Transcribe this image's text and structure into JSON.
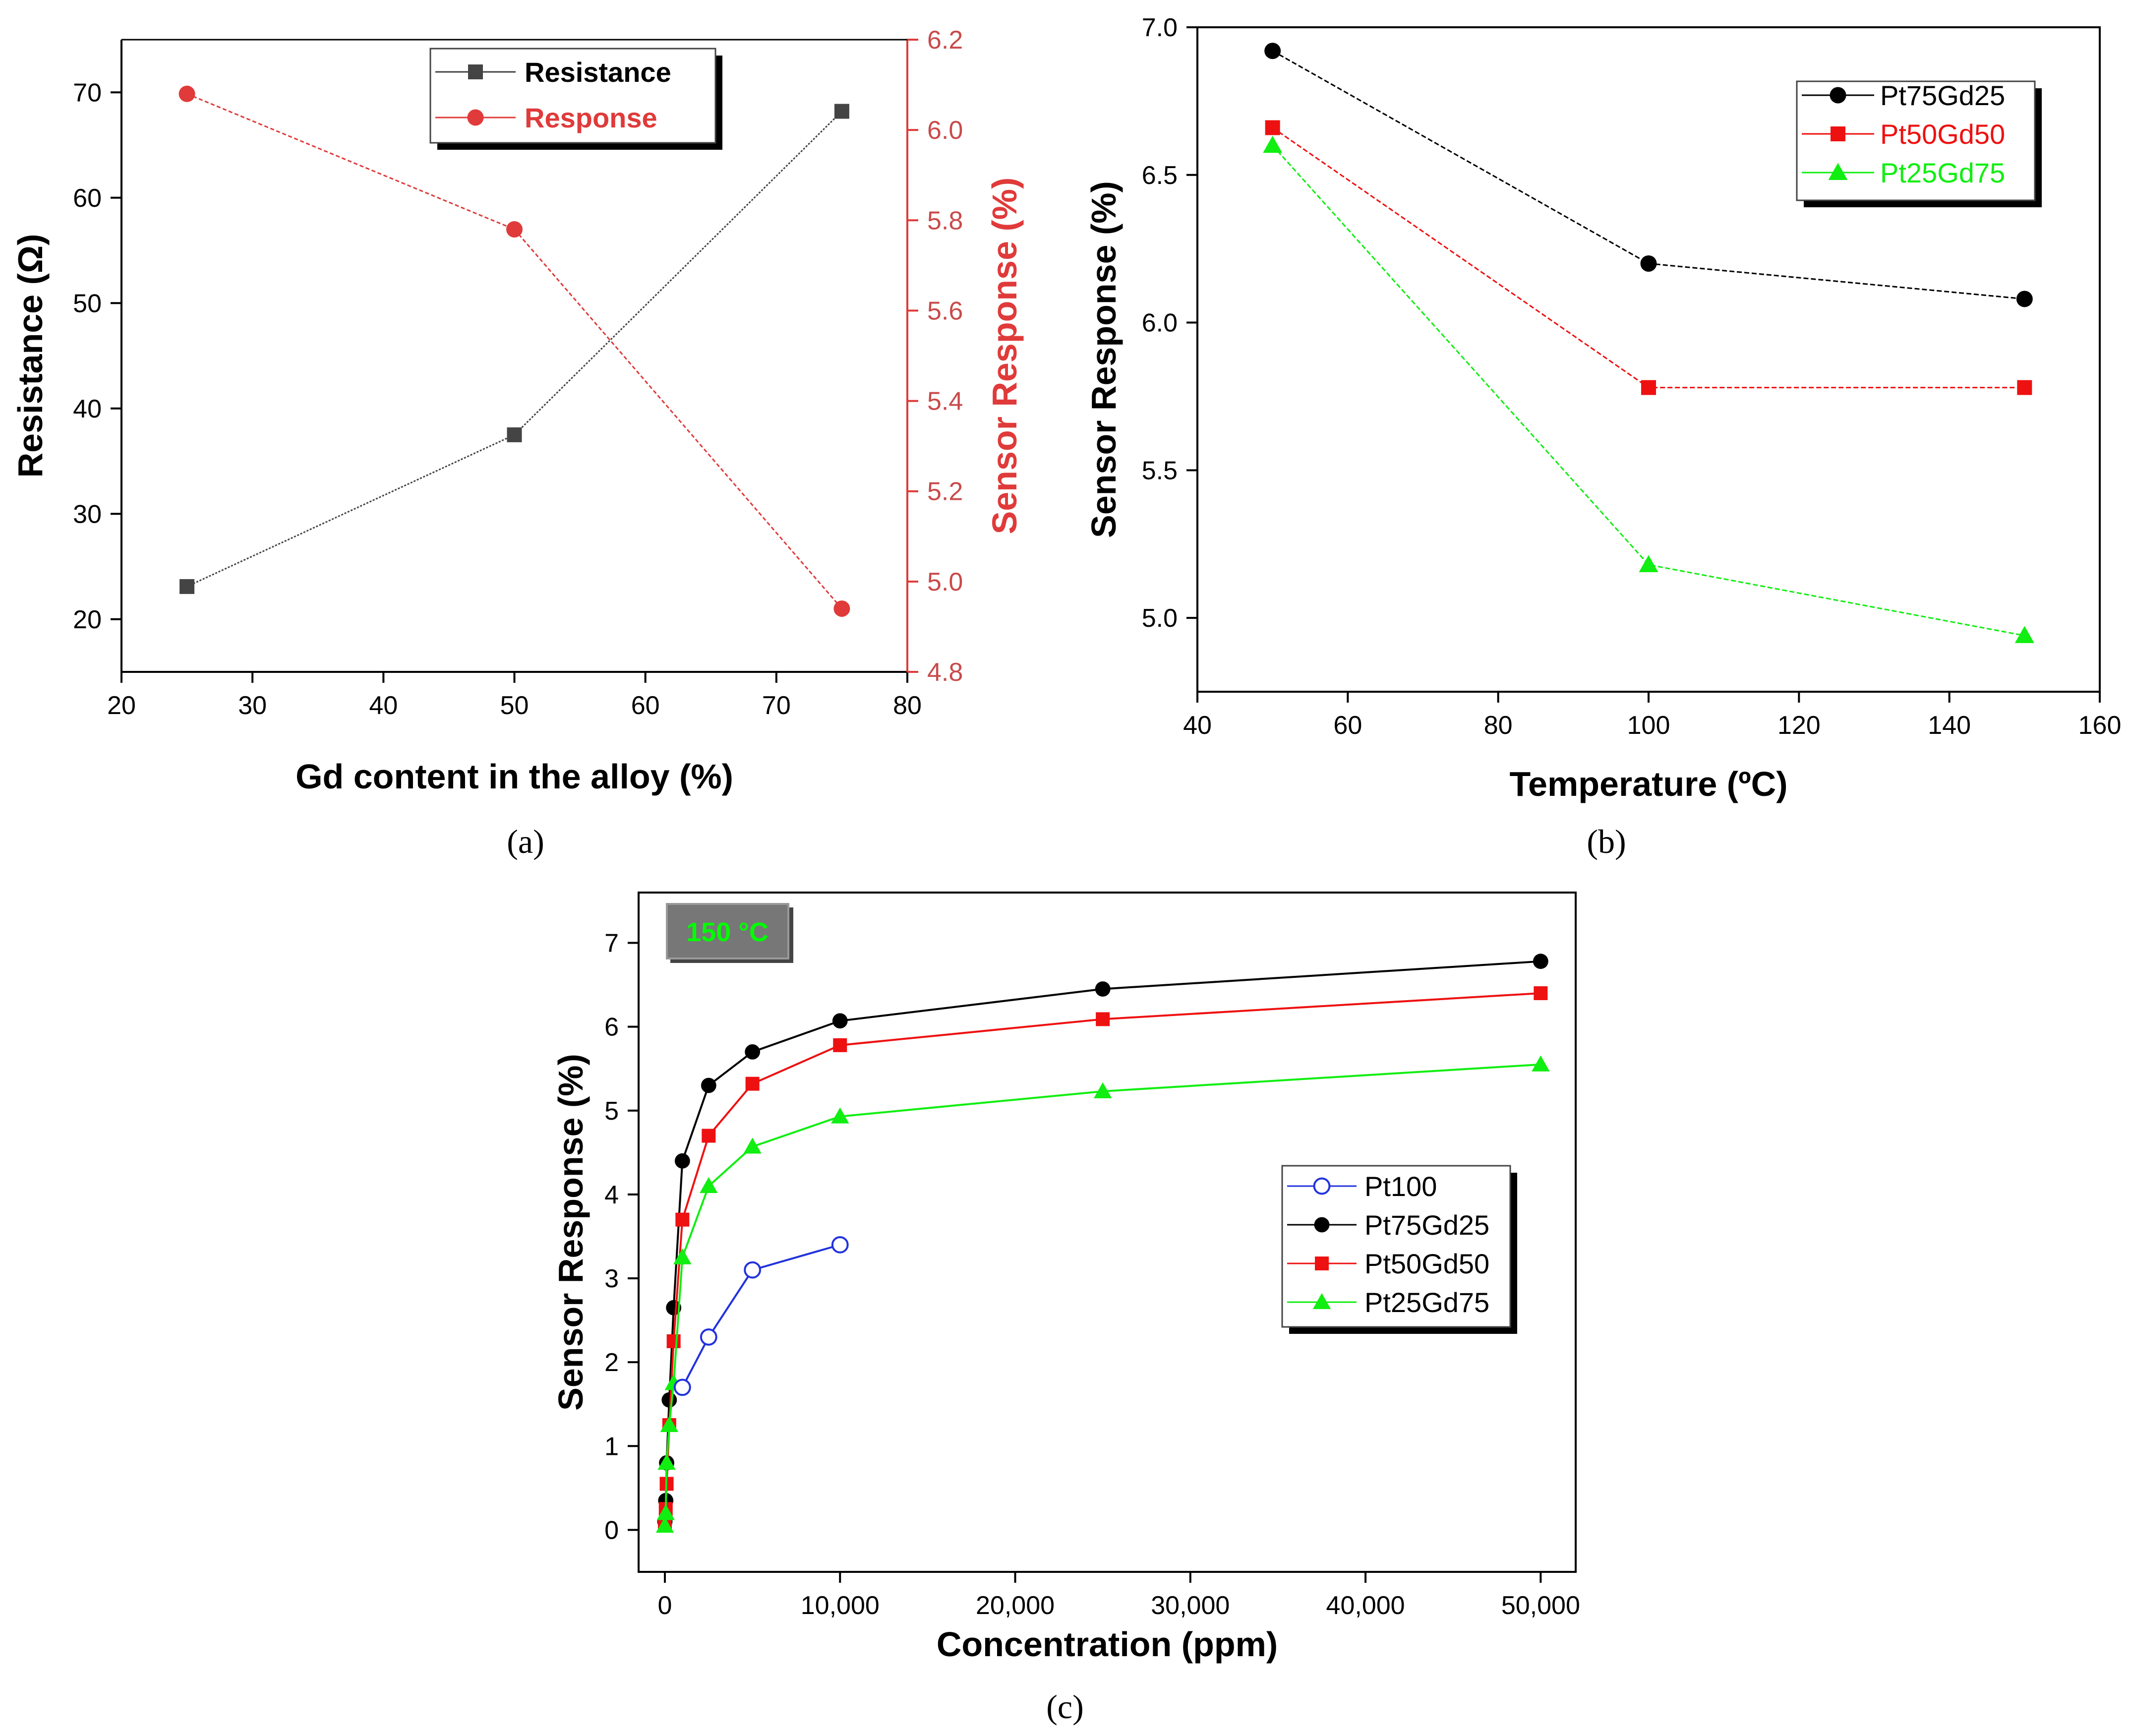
{
  "figure": {
    "caption_a": "(a)",
    "caption_b": "(b)",
    "caption_c": "(c)"
  },
  "chart_data": [
    {
      "id": "a",
      "type": "line",
      "title": "",
      "xlabel": "Gd content in the alloy (%)",
      "ylabel": "Resistance (Ω)",
      "y2label": "Sensor Response (%)",
      "xlim": [
        20,
        80
      ],
      "ylim": [
        15,
        75
      ],
      "y2lim": [
        4.8,
        6.2
      ],
      "xticks": [
        20,
        30,
        40,
        50,
        60,
        70,
        80
      ],
      "yticks": [
        20,
        30,
        40,
        50,
        60,
        70
      ],
      "y2ticks": [
        4.8,
        5.0,
        5.2,
        5.4,
        5.6,
        5.8,
        6.0,
        6.2
      ],
      "legend_position": "top-right",
      "series": [
        {
          "name": "Resistance",
          "axis": "left",
          "color": "#444444",
          "marker": "square",
          "x": [
            25,
            50,
            75
          ],
          "values": [
            23.1,
            37.5,
            68.2
          ]
        },
        {
          "name": "Response",
          "axis": "right",
          "color": "#e03a3a",
          "marker": "circle",
          "x": [
            25,
            50,
            75
          ],
          "values": [
            6.08,
            5.78,
            4.94
          ]
        }
      ]
    },
    {
      "id": "b",
      "type": "line",
      "title": "",
      "xlabel": "Temperature (ºC)",
      "ylabel": "Sensor Response (%)",
      "xlim": [
        40,
        160
      ],
      "ylim": [
        4.75,
        7.0
      ],
      "xticks": [
        40,
        60,
        80,
        100,
        120,
        140,
        160
      ],
      "yticks": [
        "5.0",
        "5.5",
        "6.0",
        "6.5",
        "7.0"
      ],
      "legend_position": "top-right",
      "series": [
        {
          "name": "Pt75Gd25",
          "color": "#000000",
          "marker": "circle",
          "x": [
            50,
            100,
            150
          ],
          "values": [
            6.92,
            6.2,
            6.08
          ]
        },
        {
          "name": "Pt50Gd50",
          "color": "#ee1111",
          "marker": "square",
          "x": [
            50,
            100,
            150
          ],
          "values": [
            6.66,
            5.78,
            5.78
          ]
        },
        {
          "name": "Pt25Gd75",
          "color": "#11ee11",
          "marker": "triangle",
          "x": [
            50,
            100,
            150
          ],
          "values": [
            6.6,
            5.18,
            4.94
          ]
        }
      ]
    },
    {
      "id": "c",
      "type": "line",
      "title": "",
      "annotation": "150 °C",
      "xlabel": "Concentration (ppm)",
      "ylabel": "Sensor Response (%)",
      "xlim": [
        -1500,
        52000
      ],
      "ylim": [
        -0.5,
        7.6
      ],
      "xticks": [
        "0",
        "10,000",
        "20,000",
        "30,000",
        "40,000",
        "50,000"
      ],
      "yticks": [
        "0",
        "1",
        "2",
        "3",
        "4",
        "5",
        "6",
        "7"
      ],
      "legend_position": "center-right",
      "series": [
        {
          "name": "Pt100",
          "color": "#2233dd",
          "marker": "open-circle",
          "x": [
            1000,
            2500,
            5000,
            10000
          ],
          "values": [
            1.7,
            2.3,
            3.1,
            3.4
          ]
        },
        {
          "name": "Pt75Gd25",
          "color": "#000000",
          "marker": "circle",
          "x": [
            0,
            50,
            100,
            250,
            500,
            1000,
            2500,
            5000,
            10000,
            25000,
            50000
          ],
          "values": [
            0.1,
            0.35,
            0.8,
            1.55,
            2.65,
            4.4,
            5.3,
            5.7,
            6.07,
            6.45,
            6.78
          ]
        },
        {
          "name": "Pt50Gd50",
          "color": "#ee1111",
          "marker": "square",
          "x": [
            0,
            50,
            100,
            250,
            500,
            1000,
            2500,
            5000,
            10000,
            25000,
            50000
          ],
          "values": [
            0.05,
            0.25,
            0.55,
            1.25,
            2.25,
            3.7,
            4.7,
            5.32,
            5.78,
            6.09,
            6.4
          ]
        },
        {
          "name": "Pt25Gd75",
          "color": "#11ee11",
          "marker": "triangle",
          "x": [
            0,
            50,
            100,
            250,
            500,
            1000,
            2500,
            5000,
            10000,
            25000,
            50000
          ],
          "values": [
            0.05,
            0.2,
            0.8,
            1.25,
            1.75,
            3.25,
            4.1,
            4.57,
            4.93,
            5.23,
            5.55
          ]
        }
      ]
    }
  ]
}
